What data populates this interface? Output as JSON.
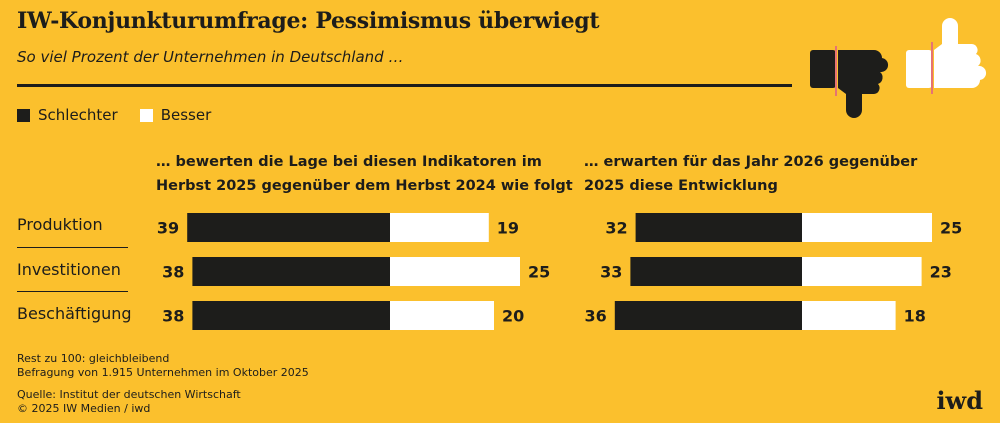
{
  "title": "IW-Konjunkturumfrage: Pessimismus überwiegt",
  "subtitle": "So viel Prozent der Unternehmen in Deutschland …",
  "legend": {
    "worse": "Schlechter",
    "better": "Besser"
  },
  "colors": {
    "background": "#FBC02D",
    "worse": "#1d1d1b",
    "better": "#ffffff",
    "accent": "#E57373"
  },
  "icons": [
    "thumbs-down-icon",
    "thumbs-up-icon"
  ],
  "chart_data": [
    {
      "type": "bar",
      "orientation": "horizontal-diverging",
      "title": "… bewerten die Lage bei diesen Indikatoren im Herbst 2025 gegenüber dem Herbst 2024 wie folgt",
      "title_lines": [
        "… bewerten die Lage bei diesen Indikatoren im",
        "Herbst 2025 gegenüber dem Herbst 2024 wie folgt"
      ],
      "categories": [
        "Produktion",
        "Investitionen",
        "Beschäftigung"
      ],
      "series": [
        {
          "name": "Schlechter",
          "values": [
            39,
            38,
            38
          ]
        },
        {
          "name": "Besser",
          "values": [
            19,
            25,
            20
          ]
        }
      ]
    },
    {
      "type": "bar",
      "orientation": "horizontal-diverging",
      "title": "… erwarten für das Jahr 2026 gegenüber 2025 diese Entwicklung",
      "title_lines": [
        "… erwarten für das Jahr 2026 gegenüber",
        "2025 diese Entwicklung"
      ],
      "categories": [
        "Produktion",
        "Investitionen",
        "Beschäftigung"
      ],
      "series": [
        {
          "name": "Schlechter",
          "values": [
            32,
            33,
            36
          ]
        },
        {
          "name": "Besser",
          "values": [
            25,
            23,
            18
          ]
        }
      ]
    }
  ],
  "notes": [
    "Rest zu 100: gleichbleibend",
    "Befragung von 1.915 Unternehmen im Oktober 2025"
  ],
  "source": [
    "Quelle: Institut der deutschen Wirtschaft",
    "© 2025 IW Medien / iwd"
  ],
  "logo": "iwd"
}
